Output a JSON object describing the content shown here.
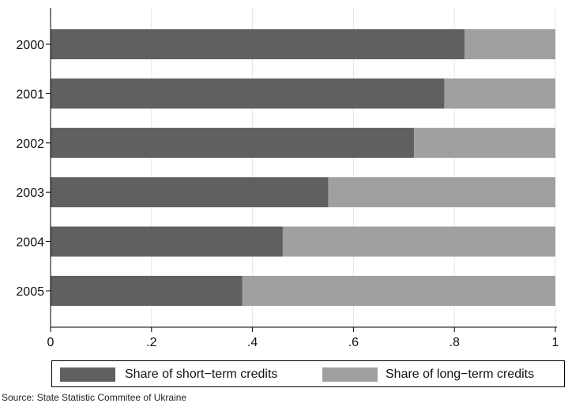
{
  "chart_data": {
    "type": "bar",
    "orientation": "horizontal",
    "stacked": true,
    "categories": [
      "2000",
      "2001",
      "2002",
      "2003",
      "2004",
      "2005"
    ],
    "series": [
      {
        "name": "Share of short−term credits",
        "values": [
          0.82,
          0.78,
          0.72,
          0.55,
          0.46,
          0.38
        ],
        "color": "#606060"
      },
      {
        "name": "Share of long−term credits",
        "values": [
          0.18,
          0.22,
          0.28,
          0.45,
          0.54,
          0.62
        ],
        "color": "#a0a0a0"
      }
    ],
    "xlim": [
      0,
      1
    ],
    "xticks": [
      0,
      0.2,
      0.4,
      0.6,
      0.8,
      1
    ],
    "xtick_labels": [
      "0",
      ".2",
      ".4",
      ".6",
      ".8",
      "1"
    ],
    "grid": "vertical",
    "legend_position": "bottom"
  },
  "footer": {
    "source": "Source:  State Statistic Commitee of Ukraine"
  }
}
